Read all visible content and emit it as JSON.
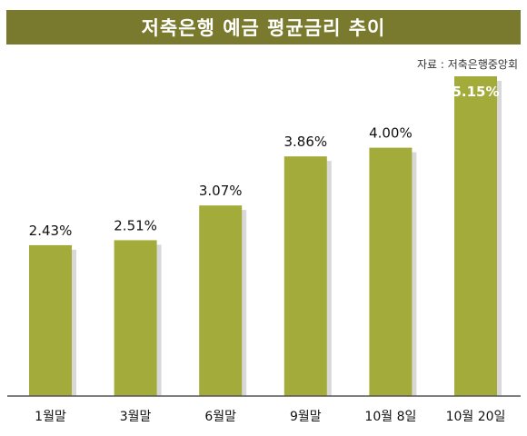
{
  "title": "저축은행 예금 평균금리 추이",
  "source": "자료 : 저축은행중앙회",
  "colors": {
    "title_bg": "#7a7a2e",
    "bar": "#a3ac3a",
    "bar_shadow": "#d8d8d8",
    "axis": "#555555"
  },
  "chart_data": {
    "type": "bar",
    "categories": [
      "1월말",
      "3월말",
      "6월말",
      "9월말",
      "10월 8일",
      "10월 20일"
    ],
    "values": [
      2.43,
      2.51,
      3.07,
      3.86,
      4.0,
      5.15
    ],
    "value_labels": [
      "2.43%",
      "2.51%",
      "3.07%",
      "3.86%",
      "4.00%",
      "5.15%"
    ],
    "ylim": [
      0,
      5.15
    ],
    "grid": false
  }
}
